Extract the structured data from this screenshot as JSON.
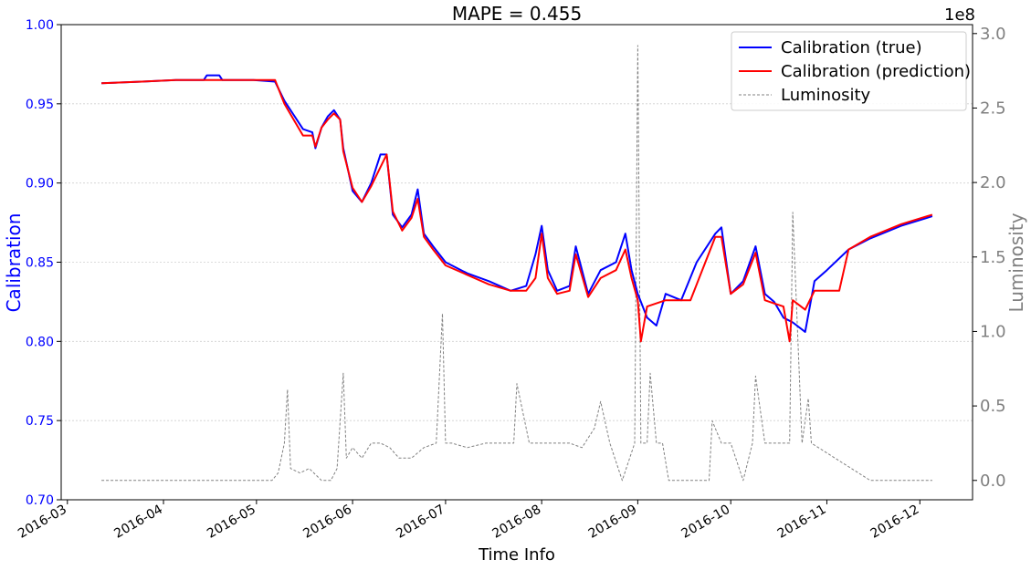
{
  "chart_data": {
    "type": "line",
    "title": "MAPE = 0.455",
    "xlabel": "Time Info",
    "ylabel": "Calibration",
    "ylabel_right": "Luminosity",
    "right_axis_offset_label": "1e8",
    "x_tick_labels": [
      "2016-03",
      "2016-04",
      "2016-05",
      "2016-06",
      "2016-07",
      "2016-08",
      "2016-09",
      "2016-10",
      "2016-11",
      "2016-12"
    ],
    "x_ticks": [
      "2016-03-01",
      "2016-04-01",
      "2016-05-01",
      "2016-06-01",
      "2016-07-01",
      "2016-08-01",
      "2016-09-01",
      "2016-10-01",
      "2016-11-01",
      "2016-12-01"
    ],
    "xlim": [
      "2016-02-28",
      "2016-12-18"
    ],
    "ylim": [
      0.7,
      1.0
    ],
    "y_ticks": [
      0.7,
      0.75,
      0.8,
      0.85,
      0.9,
      0.95,
      1.0
    ],
    "y_tick_labels": [
      "0.70",
      "0.75",
      "0.80",
      "0.85",
      "0.90",
      "0.95",
      "1.00"
    ],
    "ylim_right": [
      -0.13,
      3.06
    ],
    "y_ticks_right": [
      0.0,
      0.5,
      1.0,
      1.5,
      2.0,
      2.5,
      3.0
    ],
    "y_tick_labels_right": [
      "0.0",
      "0.5",
      "1.0",
      "1.5",
      "2.0",
      "2.5",
      "3.0"
    ],
    "grid": "horizontal dotted",
    "legend_position": "top-right",
    "series": [
      {
        "name": "Calibration (true)",
        "color": "#0000ff",
        "axis": "left",
        "style": "solid",
        "x": [
          "2016-03-12",
          "2016-03-25",
          "2016-04-05",
          "2016-04-14",
          "2016-04-15",
          "2016-04-19",
          "2016-04-20",
          "2016-04-30",
          "2016-05-07",
          "2016-05-10",
          "2016-05-13",
          "2016-05-16",
          "2016-05-19",
          "2016-05-20",
          "2016-05-22",
          "2016-05-24",
          "2016-05-26",
          "2016-05-28",
          "2016-05-29",
          "2016-06-01",
          "2016-06-04",
          "2016-06-07",
          "2016-06-10",
          "2016-06-12",
          "2016-06-14",
          "2016-06-17",
          "2016-06-20",
          "2016-06-22",
          "2016-06-24",
          "2016-06-27",
          "2016-07-01",
          "2016-07-08",
          "2016-07-15",
          "2016-07-22",
          "2016-07-27",
          "2016-07-30",
          "2016-08-01",
          "2016-08-03",
          "2016-08-06",
          "2016-08-10",
          "2016-08-12",
          "2016-08-16",
          "2016-08-20",
          "2016-08-25",
          "2016-08-28",
          "2016-08-30",
          "2016-09-01",
          "2016-09-04",
          "2016-09-07",
          "2016-09-10",
          "2016-09-15",
          "2016-09-20",
          "2016-09-26",
          "2016-09-28",
          "2016-10-01",
          "2016-10-05",
          "2016-10-09",
          "2016-10-12",
          "2016-10-15",
          "2016-10-18",
          "2016-10-21",
          "2016-10-25",
          "2016-10-28",
          "2016-11-01",
          "2016-11-08",
          "2016-11-15",
          "2016-11-25",
          "2016-12-05"
        ],
        "y": [
          0.963,
          0.964,
          0.965,
          0.965,
          0.968,
          0.968,
          0.965,
          0.965,
          0.964,
          0.952,
          0.943,
          0.934,
          0.932,
          0.922,
          0.935,
          0.942,
          0.946,
          0.94,
          0.922,
          0.895,
          0.888,
          0.9,
          0.918,
          0.918,
          0.88,
          0.872,
          0.88,
          0.896,
          0.868,
          0.86,
          0.85,
          0.843,
          0.838,
          0.832,
          0.835,
          0.855,
          0.873,
          0.845,
          0.832,
          0.835,
          0.86,
          0.83,
          0.845,
          0.85,
          0.868,
          0.845,
          0.83,
          0.815,
          0.81,
          0.83,
          0.826,
          0.85,
          0.868,
          0.872,
          0.83,
          0.838,
          0.86,
          0.83,
          0.825,
          0.815,
          0.812,
          0.806,
          0.838,
          0.845,
          0.858,
          0.865,
          0.873,
          0.879
        ]
      },
      {
        "name": "Calibration (prediction)",
        "color": "#ff0000",
        "axis": "left",
        "style": "solid",
        "x": [
          "2016-03-12",
          "2016-03-25",
          "2016-04-05",
          "2016-04-20",
          "2016-04-30",
          "2016-05-07",
          "2016-05-10",
          "2016-05-13",
          "2016-05-16",
          "2016-05-19",
          "2016-05-20",
          "2016-05-22",
          "2016-05-24",
          "2016-05-26",
          "2016-05-28",
          "2016-05-29",
          "2016-06-01",
          "2016-06-04",
          "2016-06-07",
          "2016-06-10",
          "2016-06-12",
          "2016-06-14",
          "2016-06-17",
          "2016-06-20",
          "2016-06-22",
          "2016-06-24",
          "2016-06-27",
          "2016-07-01",
          "2016-07-08",
          "2016-07-15",
          "2016-07-22",
          "2016-07-27",
          "2016-07-30",
          "2016-08-01",
          "2016-08-03",
          "2016-08-06",
          "2016-08-10",
          "2016-08-12",
          "2016-08-16",
          "2016-08-20",
          "2016-08-25",
          "2016-08-28",
          "2016-08-30",
          "2016-09-01",
          "2016-09-02",
          "2016-09-04",
          "2016-09-10",
          "2016-09-15",
          "2016-09-18",
          "2016-09-26",
          "2016-09-28",
          "2016-10-01",
          "2016-10-05",
          "2016-10-09",
          "2016-10-12",
          "2016-10-15",
          "2016-10-18",
          "2016-10-20",
          "2016-10-21",
          "2016-10-25",
          "2016-10-28",
          "2016-11-01",
          "2016-11-05",
          "2016-11-08",
          "2016-11-15",
          "2016-11-25",
          "2016-12-05"
        ],
        "y": [
          0.963,
          0.964,
          0.965,
          0.965,
          0.965,
          0.965,
          0.95,
          0.94,
          0.93,
          0.93,
          0.923,
          0.935,
          0.94,
          0.944,
          0.94,
          0.92,
          0.897,
          0.888,
          0.898,
          0.91,
          0.918,
          0.882,
          0.87,
          0.878,
          0.89,
          0.866,
          0.858,
          0.848,
          0.842,
          0.836,
          0.832,
          0.832,
          0.84,
          0.868,
          0.84,
          0.83,
          0.832,
          0.855,
          0.828,
          0.84,
          0.845,
          0.858,
          0.84,
          0.826,
          0.8,
          0.822,
          0.826,
          0.826,
          0.826,
          0.866,
          0.866,
          0.83,
          0.836,
          0.856,
          0.826,
          0.824,
          0.822,
          0.8,
          0.826,
          0.82,
          0.832,
          0.832,
          0.832,
          0.858,
          0.866,
          0.874,
          0.88
        ]
      },
      {
        "name": "Luminosity",
        "color": "#808080",
        "axis": "right",
        "style": "dashed",
        "scale_note": "values in units of 1e8",
        "x": [
          "2016-03-12",
          "2016-05-06",
          "2016-05-08",
          "2016-05-10",
          "2016-05-11",
          "2016-05-12",
          "2016-05-15",
          "2016-05-18",
          "2016-05-22",
          "2016-05-25",
          "2016-05-27",
          "2016-05-29",
          "2016-05-30",
          "2016-06-01",
          "2016-06-04",
          "2016-06-07",
          "2016-06-10",
          "2016-06-13",
          "2016-06-16",
          "2016-06-20",
          "2016-06-24",
          "2016-06-28",
          "2016-06-30",
          "2016-07-01",
          "2016-07-03",
          "2016-07-08",
          "2016-07-14",
          "2016-07-20",
          "2016-07-23",
          "2016-07-24",
          "2016-07-28",
          "2016-08-01",
          "2016-08-05",
          "2016-08-10",
          "2016-08-14",
          "2016-08-18",
          "2016-08-20",
          "2016-08-23",
          "2016-08-27",
          "2016-08-31",
          "2016-09-01",
          "2016-09-02",
          "2016-09-04",
          "2016-09-05",
          "2016-09-07",
          "2016-09-09",
          "2016-09-11",
          "2016-09-24",
          "2016-09-25",
          "2016-09-28",
          "2016-10-01",
          "2016-10-05",
          "2016-10-08",
          "2016-10-09",
          "2016-10-12",
          "2016-10-16",
          "2016-10-20",
          "2016-10-21",
          "2016-10-24",
          "2016-10-26",
          "2016-10-27",
          "2016-11-15",
          "2016-12-05"
        ],
        "y": [
          0.0,
          0.0,
          0.05,
          0.25,
          0.61,
          0.08,
          0.05,
          0.08,
          0.0,
          0.0,
          0.08,
          0.72,
          0.15,
          0.22,
          0.15,
          0.25,
          0.25,
          0.22,
          0.15,
          0.15,
          0.22,
          0.25,
          1.12,
          0.25,
          0.25,
          0.22,
          0.25,
          0.25,
          0.25,
          0.65,
          0.25,
          0.25,
          0.25,
          0.25,
          0.22,
          0.35,
          0.53,
          0.25,
          0.0,
          0.25,
          2.92,
          0.25,
          0.25,
          0.72,
          0.25,
          0.25,
          0.0,
          0.0,
          0.4,
          0.25,
          0.25,
          0.0,
          0.25,
          0.7,
          0.25,
          0.25,
          0.25,
          1.8,
          0.25,
          0.55,
          0.25,
          0.0,
          0.0
        ]
      }
    ]
  }
}
